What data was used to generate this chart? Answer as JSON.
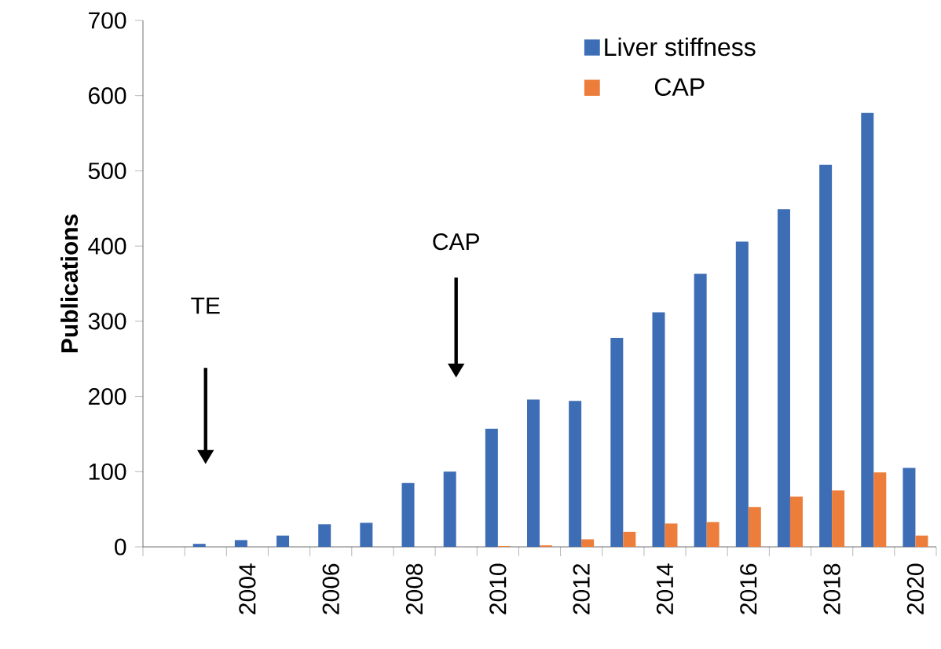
{
  "chart_data": {
    "type": "bar",
    "ylabel": "Publications",
    "categories": [
      null,
      null,
      "2004",
      null,
      "2006",
      null,
      "2008",
      null,
      "2010",
      null,
      "2012",
      null,
      "2014",
      null,
      "2016",
      null,
      "2018",
      null,
      "2020"
    ],
    "series": [
      {
        "name": "Liver stiffness",
        "color": "#3d6db5",
        "values": [
          null,
          4,
          9,
          15,
          30,
          32,
          85,
          100,
          157,
          196,
          194,
          278,
          312,
          363,
          406,
          449,
          508,
          577,
          105
        ]
      },
      {
        "name": "CAP",
        "color": "#ed7d3a",
        "values": [
          null,
          null,
          null,
          null,
          null,
          null,
          null,
          null,
          1,
          2,
          10,
          20,
          31,
          33,
          53,
          67,
          75,
          99,
          15
        ]
      }
    ],
    "annotations": [
      "TE",
      "CAP"
    ],
    "ylim": [
      0,
      700
    ],
    "yticks": [
      0,
      100,
      200,
      300,
      400,
      500,
      600,
      700
    ],
    "legend": "top right",
    "grid": false
  }
}
